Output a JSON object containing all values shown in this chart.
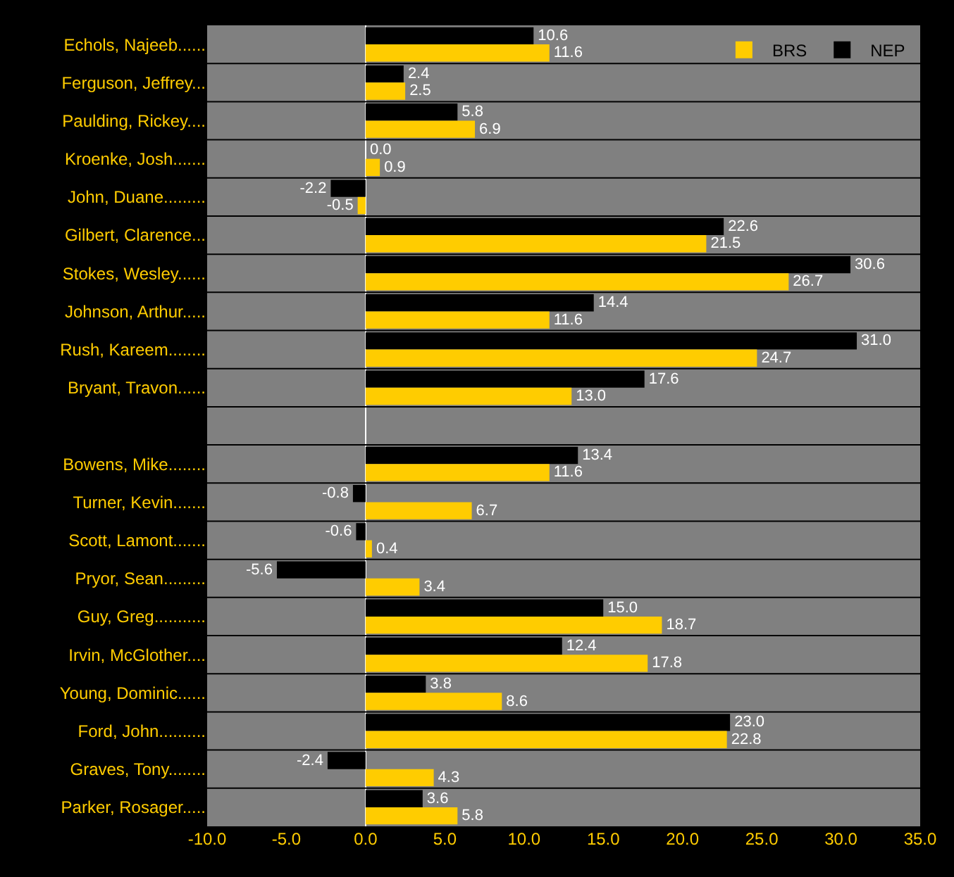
{
  "chart_data": {
    "type": "bar",
    "orientation": "horizontal",
    "categories": [
      "Echols, Najeeb......",
      "Ferguson, Jeffrey...",
      "Paulding, Rickey....",
      "Kroenke, Josh.......",
      "John, Duane.........",
      "Gilbert, Clarence...",
      "Stokes, Wesley......",
      "Johnson, Arthur.....",
      "Rush, Kareem........",
      "Bryant, Travon......",
      null,
      "Bowens, Mike........",
      "Turner, Kevin.......",
      "Scott, Lamont.......",
      "Pryor, Sean.........",
      "Guy, Greg...........",
      "Irvin, McGlother....",
      "Young, Dominic......",
      "Ford, John..........",
      "Graves, Tony........",
      "Parker, Rosager....."
    ],
    "series": [
      {
        "name": "NEP",
        "color": "#000000",
        "values": [
          10.6,
          2.4,
          5.8,
          0.0,
          -2.2,
          22.6,
          30.6,
          14.4,
          31.0,
          17.6,
          null,
          13.4,
          -0.8,
          -0.6,
          -5.6,
          15.0,
          12.4,
          3.8,
          23.0,
          -2.4,
          3.6
        ],
        "value_labels": [
          "10.6",
          "2.4",
          "5.8",
          "0.0",
          "-2.2",
          "22.6",
          "30.6",
          "14.4",
          "31.0",
          "17.6",
          null,
          "13.4",
          "-0.8",
          "-0.6",
          "-5.6",
          "15.0",
          "12.4",
          "3.8",
          "23.0",
          "-2.4",
          "3.6"
        ]
      },
      {
        "name": "BRS",
        "color": "#ffcc00",
        "values": [
          11.6,
          2.5,
          6.9,
          0.9,
          -0.5,
          21.5,
          26.7,
          11.6,
          24.7,
          13.0,
          null,
          11.6,
          6.7,
          0.4,
          3.4,
          18.7,
          17.8,
          8.6,
          22.8,
          4.3,
          5.8
        ],
        "value_labels": [
          "11.6",
          "2.5",
          "6.9",
          "0.9",
          "-0.5",
          "21.5",
          "26.7",
          "11.6",
          "24.7",
          "13.0",
          null,
          "11.6",
          "6.7",
          "0.4",
          "3.4",
          "18.7",
          "17.8",
          "8.6",
          "22.8",
          "4.3",
          "5.8"
        ]
      }
    ],
    "xlim": [
      -10,
      35
    ],
    "xticks": [
      {
        "value": -10,
        "label": "-10.0"
      },
      {
        "value": -5,
        "label": "-5.0"
      },
      {
        "value": 0,
        "label": "0.0"
      },
      {
        "value": 5,
        "label": "5.0"
      },
      {
        "value": 10,
        "label": "10.0"
      },
      {
        "value": 15,
        "label": "15.0"
      },
      {
        "value": 20,
        "label": "20.0"
      },
      {
        "value": 25,
        "label": "25.0"
      },
      {
        "value": 30,
        "label": "30.0"
      },
      {
        "value": 35,
        "label": "35.0"
      }
    ],
    "grid": "y",
    "legend": "top right"
  }
}
